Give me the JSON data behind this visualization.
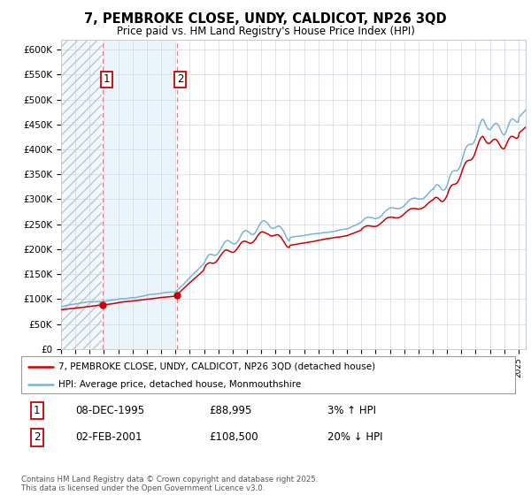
{
  "title_line1": "7, PEMBROKE CLOSE, UNDY, CALDICOT, NP26 3QD",
  "title_line2": "Price paid vs. HM Land Registry's House Price Index (HPI)",
  "ylim": [
    0,
    620000
  ],
  "yticks": [
    0,
    50000,
    100000,
    150000,
    200000,
    250000,
    300000,
    350000,
    400000,
    450000,
    500000,
    550000,
    600000
  ],
  "ytick_labels": [
    "£0",
    "£50K",
    "£100K",
    "£150K",
    "£200K",
    "£250K",
    "£300K",
    "£350K",
    "£400K",
    "£450K",
    "£500K",
    "£550K",
    "£600K"
  ],
  "legend_line1": "7, PEMBROKE CLOSE, UNDY, CALDICOT, NP26 3QD (detached house)",
  "legend_line2": "HPI: Average price, detached house, Monmouthshire",
  "sale1_date": "08-DEC-1995",
  "sale1_price": 88995,
  "sale1_hpi": "3% ↑ HPI",
  "sale2_date": "02-FEB-2001",
  "sale2_price": 108500,
  "sale2_hpi": "20% ↓ HPI",
  "footnote": "Contains HM Land Registry data © Crown copyright and database right 2025.\nThis data is licensed under the Open Government Licence v3.0.",
  "hpi_color": "#7ab3d4",
  "sale_color": "#cc0000",
  "sale1_x": 1995.92,
  "sale2_x": 2001.08,
  "xmin": 1993.0,
  "xmax": 2025.5
}
